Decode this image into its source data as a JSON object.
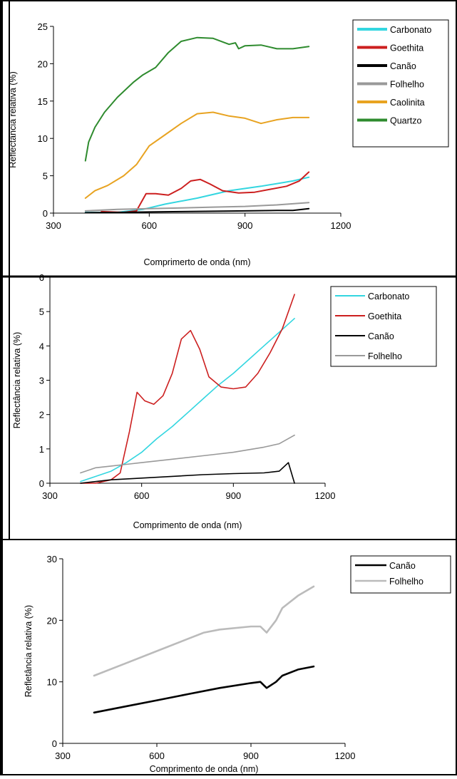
{
  "chart_data": [
    {
      "type": "line",
      "title": "",
      "xlabel": "Comprimerto de onda (nm)",
      "ylabel": "Reflectância relativa (%)",
      "xlim": [
        300,
        1200
      ],
      "ylim": [
        0,
        25
      ],
      "xticks": [
        "300",
        "600",
        "900",
        "1200"
      ],
      "yticks": [
        "0",
        "5",
        "10",
        "15",
        "20",
        "25"
      ],
      "grid": false,
      "legend_position": "top-right",
      "series": [
        {
          "name": "Carbonato",
          "color": "#33d6e0",
          "x": [
            400,
            500,
            580,
            650,
            750,
            850,
            950,
            1050,
            1100
          ],
          "y": [
            0.1,
            0.1,
            0.5,
            1.2,
            2.0,
            3.0,
            3.6,
            4.3,
            4.8
          ]
        },
        {
          "name": "Goethita",
          "color": "#cc1f1f",
          "x": [
            450,
            520,
            560,
            590,
            620,
            660,
            700,
            730,
            760,
            790,
            830,
            880,
            930,
            980,
            1030,
            1070,
            1100
          ],
          "y": [
            0.2,
            0.1,
            0.3,
            2.6,
            2.6,
            2.4,
            3.3,
            4.3,
            4.5,
            3.9,
            3.0,
            2.7,
            2.8,
            3.2,
            3.6,
            4.3,
            5.5
          ]
        },
        {
          "name": "Canão",
          "color": "#000000",
          "x": [
            400,
            500,
            600,
            700,
            800,
            900,
            1000,
            1050,
            1100
          ],
          "y": [
            0.05,
            0.1,
            0.15,
            0.2,
            0.25,
            0.3,
            0.35,
            0.35,
            0.6
          ]
        },
        {
          "name": "Folhelho",
          "color": "#999999",
          "x": [
            400,
            500,
            600,
            700,
            800,
            900,
            1000,
            1100
          ],
          "y": [
            0.3,
            0.5,
            0.6,
            0.7,
            0.8,
            0.9,
            1.1,
            1.4
          ]
        },
        {
          "name": "Caolinita",
          "color": "#e8a321",
          "x": [
            400,
            430,
            470,
            520,
            560,
            600,
            650,
            700,
            750,
            800,
            850,
            900,
            950,
            1000,
            1050,
            1100
          ],
          "y": [
            2.0,
            3.0,
            3.7,
            5.0,
            6.5,
            9.0,
            10.5,
            12.0,
            13.3,
            13.5,
            13.0,
            12.7,
            12.0,
            12.5,
            12.8,
            12.8
          ]
        },
        {
          "name": "Quartzo",
          "color": "#2e8b2e",
          "x": [
            400,
            410,
            430,
            460,
            500,
            550,
            580,
            620,
            660,
            700,
            750,
            800,
            850,
            870,
            880,
            900,
            950,
            1000,
            1050,
            1100
          ],
          "y": [
            7.0,
            9.5,
            11.5,
            13.5,
            15.5,
            17.5,
            18.5,
            19.5,
            21.5,
            23.0,
            23.5,
            23.4,
            22.6,
            22.8,
            22.0,
            22.4,
            22.5,
            22.0,
            22.0,
            22.3
          ]
        }
      ]
    },
    {
      "type": "line",
      "title": "",
      "xlabel": "Comprimento de onda (nm)",
      "ylabel": "Reflectância relativa (%)",
      "xlim": [
        300,
        1200
      ],
      "ylim": [
        0,
        6
      ],
      "xticks": [
        "300",
        "600",
        "900",
        "1200"
      ],
      "yticks": [
        "0",
        "1",
        "2",
        "3",
        "4",
        "5",
        "6"
      ],
      "grid": false,
      "legend_position": "top-right",
      "series": [
        {
          "name": "Carbonato",
          "color": "#33d6e0",
          "x": [
            400,
            450,
            500,
            550,
            600,
            650,
            700,
            750,
            800,
            850,
            900,
            950,
            1000,
            1050,
            1100
          ],
          "y": [
            0.05,
            0.2,
            0.35,
            0.6,
            0.9,
            1.3,
            1.65,
            2.05,
            2.45,
            2.85,
            3.2,
            3.6,
            4.0,
            4.4,
            4.8
          ]
        },
        {
          "name": "Goethita",
          "color": "#cc1f1f",
          "x": [
            400,
            450,
            500,
            530,
            560,
            585,
            610,
            640,
            670,
            700,
            730,
            760,
            790,
            820,
            860,
            900,
            940,
            980,
            1020,
            1060,
            1100
          ],
          "y": [
            0.0,
            0.0,
            0.1,
            0.3,
            1.5,
            2.65,
            2.4,
            2.3,
            2.55,
            3.2,
            4.2,
            4.45,
            3.9,
            3.1,
            2.8,
            2.75,
            2.8,
            3.2,
            3.8,
            4.5,
            5.5
          ]
        },
        {
          "name": "Canão",
          "color": "#000000",
          "x": [
            400,
            500,
            600,
            700,
            800,
            900,
            1000,
            1050,
            1080,
            1100
          ],
          "y": [
            0.0,
            0.1,
            0.15,
            0.2,
            0.25,
            0.28,
            0.3,
            0.35,
            0.6,
            0.0
          ]
        },
        {
          "name": "Folhelho",
          "color": "#999999",
          "x": [
            400,
            450,
            500,
            550,
            600,
            700,
            800,
            900,
            1000,
            1050,
            1100
          ],
          "y": [
            0.3,
            0.45,
            0.5,
            0.55,
            0.6,
            0.7,
            0.8,
            0.9,
            1.05,
            1.15,
            1.4
          ]
        }
      ]
    },
    {
      "type": "line",
      "title": "",
      "xlabel": "Comprimento de onda (nm)",
      "ylabel": "Refletância relativa (%)",
      "xlim": [
        300,
        1200
      ],
      "ylim": [
        0,
        30
      ],
      "xticks": [
        "300",
        "600",
        "900",
        "1200"
      ],
      "yticks": [
        "0",
        "10",
        "20",
        "30"
      ],
      "grid": false,
      "legend_position": "top-right",
      "series": [
        {
          "name": "Canão",
          "color": "#000000",
          "x": [
            400,
            500,
            600,
            700,
            800,
            900,
            930,
            950,
            980,
            1000,
            1050,
            1100
          ],
          "y": [
            5.0,
            6.0,
            7.0,
            8.0,
            9.0,
            9.8,
            10.0,
            9.0,
            10.0,
            11.0,
            12.0,
            12.5
          ]
        },
        {
          "name": "Folhelho",
          "color": "#bbbbbb",
          "x": [
            400,
            500,
            600,
            700,
            750,
            800,
            900,
            930,
            950,
            980,
            1000,
            1050,
            1100
          ],
          "y": [
            11.0,
            13.0,
            15.0,
            17.0,
            18.0,
            18.5,
            19.0,
            19.0,
            18.0,
            20.0,
            22.0,
            24.0,
            25.5
          ]
        }
      ]
    }
  ]
}
